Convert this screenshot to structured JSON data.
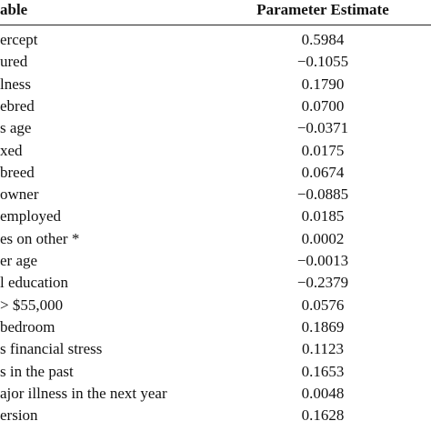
{
  "table": {
    "header": [
      "able",
      "Parameter Estimate"
    ],
    "rows": [
      [
        "ercept",
        "0.5984"
      ],
      [
        "ured",
        "−0.1055"
      ],
      [
        "lness",
        "0.1790"
      ],
      [
        "ebred",
        "0.0700"
      ],
      [
        "s age",
        "−0.0371"
      ],
      [
        "xed",
        "0.0175"
      ],
      [
        "breed",
        "0.0674"
      ],
      [
        "owner",
        "−0.0885"
      ],
      [
        "employed",
        "0.0185"
      ],
      [
        "es on other *",
        "0.0002"
      ],
      [
        "er age",
        "−0.0013"
      ],
      [
        "l education",
        "−0.2379"
      ],
      [
        "> $55,000",
        "0.0576"
      ],
      [
        "bedroom",
        "0.1869"
      ],
      [
        "s financial stress",
        "0.1123"
      ],
      [
        "s in the past",
        "0.1653"
      ],
      [
        "ajor illness in the next year",
        "0.0048"
      ],
      [
        "ersion",
        "0.1628"
      ]
    ]
  }
}
